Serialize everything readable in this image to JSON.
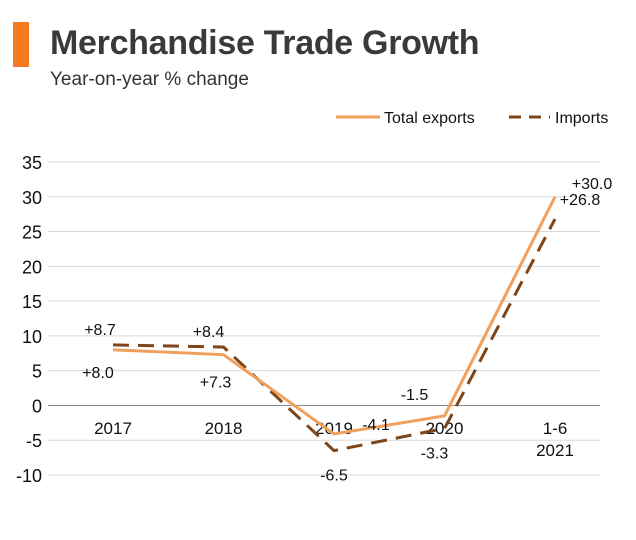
{
  "header": {
    "title": "Merchandise Trade Growth",
    "subtitle": "Year-on-year % change",
    "accent_color": "#F47B20"
  },
  "chart_data": {
    "type": "line",
    "categories": [
      [
        "2017"
      ],
      [
        "2018"
      ],
      [
        "2019"
      ],
      [
        "2020"
      ],
      [
        "1-6",
        "2021"
      ]
    ],
    "ylim": [
      -10,
      35
    ],
    "yticks": [
      35,
      30,
      25,
      20,
      15,
      10,
      5,
      0,
      -5,
      -10
    ],
    "grid": true,
    "legend_placement": "top-right",
    "series": [
      {
        "name": "Total exports",
        "values": [
          8.0,
          7.3,
          -4.1,
          -1.5,
          30.0
        ],
        "labels": [
          "+8.0",
          "+7.3",
          "-4.1",
          "-1.5",
          "+30.0"
        ],
        "color": "#F0A05C",
        "style": "solid"
      },
      {
        "name": "Imports",
        "values": [
          8.7,
          8.4,
          -6.5,
          -3.3,
          26.8
        ],
        "labels": [
          "+8.7",
          "+8.4",
          "-6.5",
          "-3.3",
          "+26.8"
        ],
        "color": "#7E4518",
        "style": "dashed"
      }
    ]
  }
}
